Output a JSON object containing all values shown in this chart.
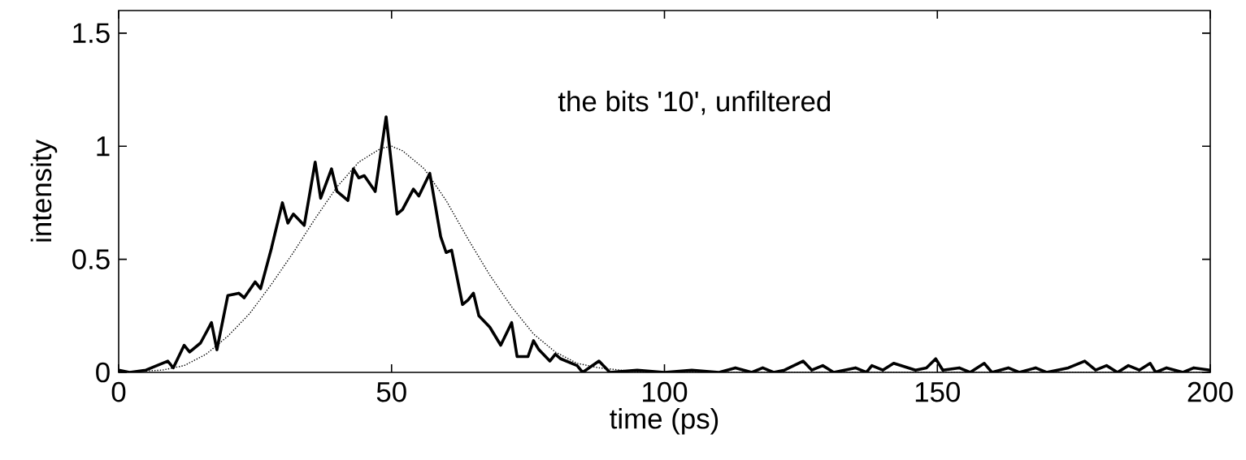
{
  "chart_data": {
    "type": "line",
    "xlabel": "time (ps)",
    "ylabel": "intensity",
    "annotations": [
      "the bits '10', unfiltered"
    ],
    "xlim": [
      0,
      200
    ],
    "ylim": [
      0,
      1.6
    ],
    "xticks": [
      0,
      50,
      100,
      150,
      200
    ],
    "yticks": [
      0,
      0.5,
      1,
      1.5
    ],
    "grid": false,
    "series": [
      {
        "color": "#000000",
        "line_style": "solid",
        "x": [
          0,
          2,
          5,
          7,
          9,
          10,
          12,
          13,
          15,
          17,
          18,
          20,
          22,
          23,
          25,
          26,
          28,
          30,
          31,
          32,
          34,
          36,
          37,
          39,
          40,
          42,
          43,
          44,
          45,
          47,
          49,
          51,
          52,
          54,
          55,
          57,
          59,
          60,
          61,
          63,
          64,
          65,
          66,
          68,
          70,
          72,
          73,
          75,
          76,
          77,
          79,
          80,
          81,
          84,
          85,
          88,
          90,
          95,
          100,
          105,
          110,
          113,
          116,
          118,
          120,
          122,
          125.4,
          127,
          129,
          131,
          135,
          137,
          138,
          140,
          142,
          146,
          148,
          149.7,
          151,
          154,
          156,
          158.6,
          160,
          163,
          165,
          168,
          170,
          172,
          174,
          177,
          179,
          181,
          183,
          185,
          187,
          189,
          190,
          192,
          195,
          197,
          200
        ],
        "values": [
          0.01,
          0,
          0.01,
          0.03,
          0.05,
          0.02,
          0.12,
          0.09,
          0.13,
          0.22,
          0.1,
          0.34,
          0.35,
          0.33,
          0.4,
          0.37,
          0.55,
          0.75,
          0.66,
          0.7,
          0.65,
          0.93,
          0.77,
          0.9,
          0.8,
          0.76,
          0.9,
          0.86,
          0.87,
          0.8,
          1.13,
          0.7,
          0.72,
          0.81,
          0.78,
          0.88,
          0.6,
          0.53,
          0.54,
          0.3,
          0.32,
          0.35,
          0.25,
          0.2,
          0.12,
          0.22,
          0.07,
          0.07,
          0.14,
          0.1,
          0.05,
          0.08,
          0.06,
          0.03,
          0,
          0.05,
          0,
          0.01,
          0,
          0.01,
          0,
          0.02,
          0,
          0.02,
          0,
          0.01,
          0.05,
          0.01,
          0.03,
          0,
          0.02,
          0,
          0.03,
          0.01,
          0.04,
          0.01,
          0.02,
          0.06,
          0.01,
          0.02,
          0,
          0.04,
          0,
          0.02,
          0,
          0.02,
          0,
          0.01,
          0.02,
          0.05,
          0.01,
          0.03,
          0,
          0.03,
          0.01,
          0.04,
          0,
          0.02,
          0,
          0.02,
          0.01
        ]
      },
      {
        "color": "#000000",
        "line_style": "dotted",
        "x": [
          0,
          8,
          12,
          16,
          20,
          24,
          28,
          32,
          36,
          40,
          44,
          48,
          50,
          52,
          56,
          60,
          64,
          68,
          72,
          76,
          80,
          84,
          88,
          92,
          96,
          100,
          110,
          130,
          160,
          200
        ],
        "values": [
          0,
          0.01,
          0.03,
          0.08,
          0.16,
          0.26,
          0.39,
          0.53,
          0.68,
          0.82,
          0.93,
          0.99,
          1.0,
          0.98,
          0.9,
          0.76,
          0.59,
          0.43,
          0.29,
          0.17,
          0.09,
          0.04,
          0.02,
          0.01,
          0,
          0,
          0,
          0,
          0,
          0
        ]
      }
    ]
  }
}
